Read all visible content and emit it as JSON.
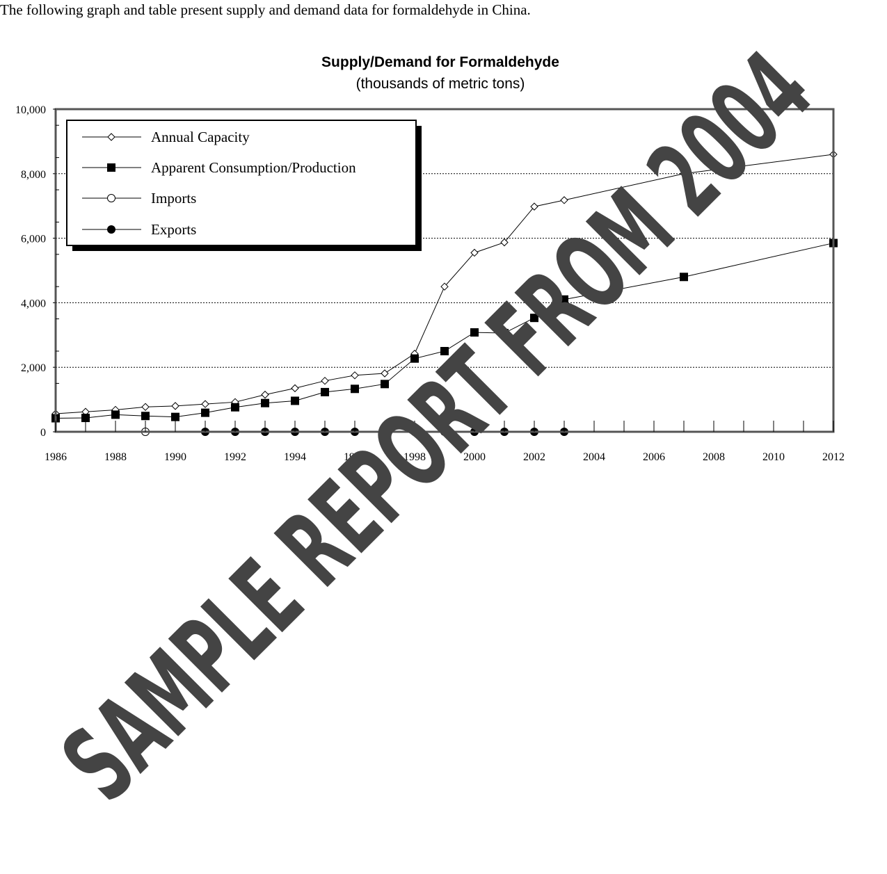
{
  "intro_text": "The following graph and table present supply and demand data for formaldehyde in China.",
  "watermark": "SAMPLE REPORT FROM 2004",
  "chart_data": {
    "type": "line",
    "title": "Supply/Demand for Formaldehyde",
    "subtitle": "(thousands of metric tons)",
    "xlabel": "",
    "ylabel": "",
    "xlim": [
      1986,
      2012
    ],
    "ylim": [
      0,
      10000
    ],
    "x_ticks": [
      1986,
      1988,
      1990,
      1992,
      1994,
      1996,
      1998,
      2000,
      2002,
      2004,
      2006,
      2008,
      2010,
      2012
    ],
    "y_ticks": [
      0,
      2000,
      4000,
      6000,
      8000,
      10000
    ],
    "y_tick_labels": [
      "0",
      "2,000",
      "4,000",
      "6,000",
      "8,000",
      "10,000"
    ],
    "grid": "horizontal dotted at 2,000 / 4,000 / 6,000 / 8,000",
    "legend_position": "top-left",
    "series": [
      {
        "name": "Annual Capacity",
        "marker": "open-diamond",
        "x": [
          1986,
          1987,
          1988,
          1989,
          1990,
          1991,
          1992,
          1993,
          1994,
          1995,
          1996,
          1997,
          1998,
          1999,
          2000,
          2001,
          2002,
          2003,
          2007,
          2012
        ],
        "values": [
          560,
          620,
          680,
          770,
          800,
          860,
          920,
          1150,
          1350,
          1580,
          1750,
          1810,
          2420,
          4500,
          5550,
          5870,
          6980,
          7180,
          8000,
          8600
        ]
      },
      {
        "name": "Apparent Consumption/Production",
        "marker": "filled-square",
        "x": [
          1986,
          1987,
          1988,
          1989,
          1990,
          1991,
          1992,
          1993,
          1994,
          1995,
          1996,
          1997,
          1998,
          1999,
          2000,
          2001,
          2002,
          2003,
          2007,
          2012
        ],
        "values": [
          420,
          430,
          530,
          490,
          460,
          590,
          760,
          890,
          960,
          1230,
          1330,
          1480,
          2270,
          2500,
          3080,
          3060,
          3530,
          4100,
          4800,
          5850
        ]
      },
      {
        "name": "Imports",
        "marker": "open-circle",
        "x": [
          1989
        ],
        "values": [
          0
        ]
      },
      {
        "name": "Exports",
        "marker": "filled-circle",
        "x": [
          1991,
          1992,
          1993,
          1994,
          1995,
          1996,
          1997,
          1998,
          1999,
          2000,
          2001,
          2002,
          2003
        ],
        "values": [
          0,
          0,
          0,
          0,
          0,
          0,
          0,
          0,
          0,
          0,
          0,
          0,
          0
        ]
      }
    ]
  }
}
